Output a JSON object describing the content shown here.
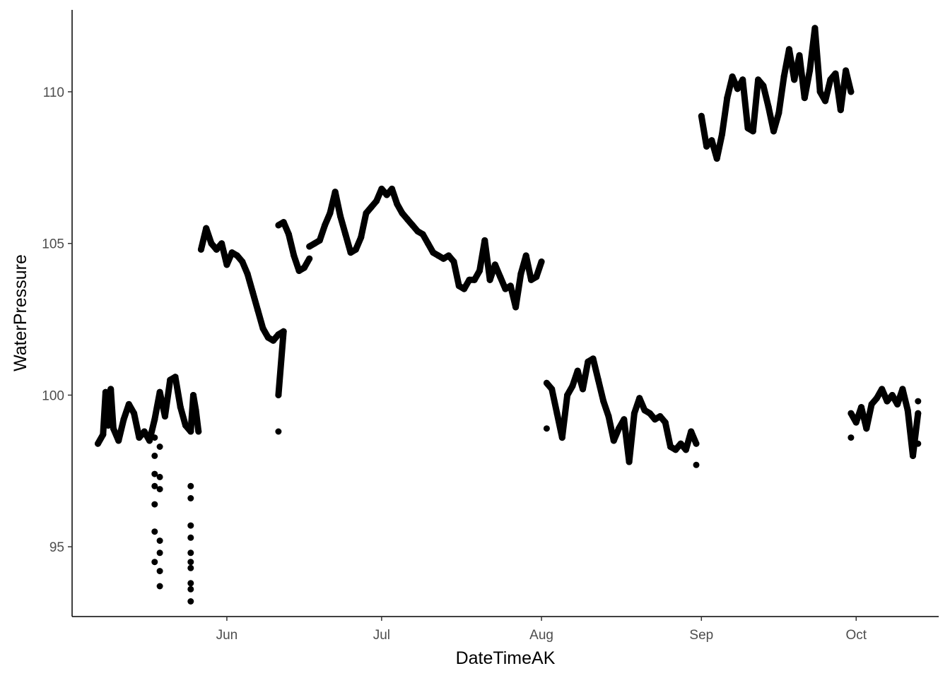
{
  "chart_data": {
    "type": "scatter",
    "xlabel": "DateTimeAK",
    "ylabel": "WaterPressure",
    "x_axis_type": "date",
    "xlim": [
      "2023-05-02",
      "2023-10-17"
    ],
    "ylim": [
      92.7,
      112.7
    ],
    "x_ticks": [
      {
        "date": "2023-06-01",
        "label": "Jun"
      },
      {
        "date": "2023-07-01",
        "label": "Jul"
      },
      {
        "date": "2023-08-01",
        "label": "Aug"
      },
      {
        "date": "2023-09-01",
        "label": "Sep"
      },
      {
        "date": "2023-10-01",
        "label": "Oct"
      }
    ],
    "y_ticks": [
      95,
      100,
      105,
      110
    ],
    "grid": false,
    "legend": "none",
    "point_color": "#000000",
    "series": [
      {
        "values": [
          {
            "x": "2023-05-07",
            "y": 98.4
          },
          {
            "x": "2023-05-08",
            "y": 98.7
          },
          {
            "x": "2023-05-08 12:00",
            "y": 100.1
          },
          {
            "x": "2023-05-09",
            "y": 99.0
          },
          {
            "x": "2023-05-09 12:00",
            "y": 100.2
          },
          {
            "x": "2023-05-10",
            "y": 98.9
          },
          {
            "x": "2023-05-11",
            "y": 98.5
          },
          {
            "x": "2023-05-12",
            "y": 99.2
          },
          {
            "x": "2023-05-13",
            "y": 99.7
          },
          {
            "x": "2023-05-14",
            "y": 99.4
          },
          {
            "x": "2023-05-15",
            "y": 98.6
          },
          {
            "x": "2023-05-16",
            "y": 98.8
          },
          {
            "x": "2023-05-17",
            "y": 98.5
          },
          {
            "x": "2023-05-18",
            "y": 99.2
          },
          {
            "x": "2023-05-19",
            "y": 100.1
          },
          {
            "x": "2023-05-20",
            "y": 99.3
          },
          {
            "x": "2023-05-21",
            "y": 100.5
          },
          {
            "x": "2023-05-22",
            "y": 100.6
          },
          {
            "x": "2023-05-23",
            "y": 99.6
          },
          {
            "x": "2023-05-24",
            "y": 99.0
          },
          {
            "x": "2023-05-25",
            "y": 98.8
          },
          {
            "x": "2023-05-25 12:00",
            "y": 100.0
          },
          {
            "x": "2023-05-26",
            "y": 99.5
          },
          {
            "x": "2023-05-26 12:00",
            "y": 98.8
          },
          {
            "x": "2023-05-18",
            "y": 98.6
          },
          {
            "x": "2023-05-18",
            "y": 98.0
          },
          {
            "x": "2023-05-18",
            "y": 97.4
          },
          {
            "x": "2023-05-18",
            "y": 97.0
          },
          {
            "x": "2023-05-18",
            "y": 96.4
          },
          {
            "x": "2023-05-18",
            "y": 95.5
          },
          {
            "x": "2023-05-18",
            "y": 94.5
          },
          {
            "x": "2023-05-19",
            "y": 98.3
          },
          {
            "x": "2023-05-19",
            "y": 97.3
          },
          {
            "x": "2023-05-19",
            "y": 96.9
          },
          {
            "x": "2023-05-19",
            "y": 95.2
          },
          {
            "x": "2023-05-19",
            "y": 94.8
          },
          {
            "x": "2023-05-19",
            "y": 94.2
          },
          {
            "x": "2023-05-19",
            "y": 93.7
          },
          {
            "x": "2023-05-25",
            "y": 97.0
          },
          {
            "x": "2023-05-25",
            "y": 96.6
          },
          {
            "x": "2023-05-25",
            "y": 95.7
          },
          {
            "x": "2023-05-25",
            "y": 95.3
          },
          {
            "x": "2023-05-25",
            "y": 94.8
          },
          {
            "x": "2023-05-25",
            "y": 94.5
          },
          {
            "x": "2023-05-25",
            "y": 94.3
          },
          {
            "x": "2023-05-25",
            "y": 93.8
          },
          {
            "x": "2023-05-25",
            "y": 93.6
          },
          {
            "x": "2023-05-25",
            "y": 93.2
          },
          {
            "x": "2023-05-27",
            "y": 104.8
          },
          {
            "x": "2023-05-28",
            "y": 105.5
          },
          {
            "x": "2023-05-29",
            "y": 105.0
          },
          {
            "x": "2023-05-30",
            "y": 104.8
          },
          {
            "x": "2023-05-31",
            "y": 105.0
          },
          {
            "x": "2023-06-01",
            "y": 104.3
          },
          {
            "x": "2023-06-02",
            "y": 104.7
          },
          {
            "x": "2023-06-03",
            "y": 104.6
          },
          {
            "x": "2023-06-04",
            "y": 104.4
          },
          {
            "x": "2023-06-05",
            "y": 104.0
          },
          {
            "x": "2023-06-06",
            "y": 103.4
          },
          {
            "x": "2023-06-07",
            "y": 102.8
          },
          {
            "x": "2023-06-08",
            "y": 102.2
          },
          {
            "x": "2023-06-09",
            "y": 101.9
          },
          {
            "x": "2023-06-10",
            "y": 101.8
          },
          {
            "x": "2023-06-11",
            "y": 102.0
          },
          {
            "x": "2023-06-12",
            "y": 102.1
          },
          {
            "x": "2023-06-11",
            "y": 100.0
          },
          {
            "x": "2023-06-11",
            "y": 98.8
          },
          {
            "x": "2023-06-11",
            "y": 105.6
          },
          {
            "x": "2023-06-12",
            "y": 105.7
          },
          {
            "x": "2023-06-13",
            "y": 105.3
          },
          {
            "x": "2023-06-14",
            "y": 104.6
          },
          {
            "x": "2023-06-15",
            "y": 104.1
          },
          {
            "x": "2023-06-16",
            "y": 104.2
          },
          {
            "x": "2023-06-17",
            "y": 104.5
          },
          {
            "x": "2023-06-17",
            "y": 104.9
          },
          {
            "x": "2023-06-18",
            "y": 105.0
          },
          {
            "x": "2023-06-19",
            "y": 105.1
          },
          {
            "x": "2023-06-20",
            "y": 105.6
          },
          {
            "x": "2023-06-21",
            "y": 106.0
          },
          {
            "x": "2023-06-22",
            "y": 106.7
          },
          {
            "x": "2023-06-23",
            "y": 105.9
          },
          {
            "x": "2023-06-24",
            "y": 105.3
          },
          {
            "x": "2023-06-25",
            "y": 104.7
          },
          {
            "x": "2023-06-26",
            "y": 104.8
          },
          {
            "x": "2023-06-27",
            "y": 105.2
          },
          {
            "x": "2023-06-28",
            "y": 106.0
          },
          {
            "x": "2023-06-29",
            "y": 106.2
          },
          {
            "x": "2023-06-30",
            "y": 106.4
          },
          {
            "x": "2023-07-01",
            "y": 106.8
          },
          {
            "x": "2023-07-02",
            "y": 106.6
          },
          {
            "x": "2023-07-03",
            "y": 106.8
          },
          {
            "x": "2023-07-04",
            "y": 106.3
          },
          {
            "x": "2023-07-05",
            "y": 106.0
          },
          {
            "x": "2023-07-06",
            "y": 105.8
          },
          {
            "x": "2023-07-07",
            "y": 105.6
          },
          {
            "x": "2023-07-08",
            "y": 105.4
          },
          {
            "x": "2023-07-09",
            "y": 105.3
          },
          {
            "x": "2023-07-10",
            "y": 105.0
          },
          {
            "x": "2023-07-11",
            "y": 104.7
          },
          {
            "x": "2023-07-12",
            "y": 104.6
          },
          {
            "x": "2023-07-13",
            "y": 104.5
          },
          {
            "x": "2023-07-14",
            "y": 104.6
          },
          {
            "x": "2023-07-15",
            "y": 104.4
          },
          {
            "x": "2023-07-16",
            "y": 103.6
          },
          {
            "x": "2023-07-17",
            "y": 103.5
          },
          {
            "x": "2023-07-18",
            "y": 103.8
          },
          {
            "x": "2023-07-19",
            "y": 103.8
          },
          {
            "x": "2023-07-20",
            "y": 104.1
          },
          {
            "x": "2023-07-21",
            "y": 105.1
          },
          {
            "x": "2023-07-22",
            "y": 103.8
          },
          {
            "x": "2023-07-23",
            "y": 104.3
          },
          {
            "x": "2023-07-24",
            "y": 103.9
          },
          {
            "x": "2023-07-25",
            "y": 103.5
          },
          {
            "x": "2023-07-26",
            "y": 103.6
          },
          {
            "x": "2023-07-27",
            "y": 102.9
          },
          {
            "x": "2023-07-28",
            "y": 104.0
          },
          {
            "x": "2023-07-29",
            "y": 104.6
          },
          {
            "x": "2023-07-30",
            "y": 103.8
          },
          {
            "x": "2023-07-31",
            "y": 103.9
          },
          {
            "x": "2023-08-01",
            "y": 104.4
          },
          {
            "x": "2023-08-02",
            "y": 98.9
          },
          {
            "x": "2023-08-02",
            "y": 100.4
          },
          {
            "x": "2023-08-03",
            "y": 100.2
          },
          {
            "x": "2023-08-04",
            "y": 99.4
          },
          {
            "x": "2023-08-05",
            "y": 98.6
          },
          {
            "x": "2023-08-06",
            "y": 100.0
          },
          {
            "x": "2023-08-07",
            "y": 100.3
          },
          {
            "x": "2023-08-08",
            "y": 100.8
          },
          {
            "x": "2023-08-09",
            "y": 100.2
          },
          {
            "x": "2023-08-10",
            "y": 101.1
          },
          {
            "x": "2023-08-11",
            "y": 101.2
          },
          {
            "x": "2023-08-12",
            "y": 100.5
          },
          {
            "x": "2023-08-13",
            "y": 99.8
          },
          {
            "x": "2023-08-14",
            "y": 99.3
          },
          {
            "x": "2023-08-15",
            "y": 98.5
          },
          {
            "x": "2023-08-16",
            "y": 98.9
          },
          {
            "x": "2023-08-17",
            "y": 99.2
          },
          {
            "x": "2023-08-18",
            "y": 97.8
          },
          {
            "x": "2023-08-19",
            "y": 99.4
          },
          {
            "x": "2023-08-20",
            "y": 99.9
          },
          {
            "x": "2023-08-21",
            "y": 99.5
          },
          {
            "x": "2023-08-22",
            "y": 99.4
          },
          {
            "x": "2023-08-23",
            "y": 99.2
          },
          {
            "x": "2023-08-24",
            "y": 99.3
          },
          {
            "x": "2023-08-25",
            "y": 99.1
          },
          {
            "x": "2023-08-26",
            "y": 98.3
          },
          {
            "x": "2023-08-27",
            "y": 98.2
          },
          {
            "x": "2023-08-28",
            "y": 98.4
          },
          {
            "x": "2023-08-29",
            "y": 98.2
          },
          {
            "x": "2023-08-30",
            "y": 98.8
          },
          {
            "x": "2023-08-31",
            "y": 98.4
          },
          {
            "x": "2023-08-31",
            "y": 97.7
          },
          {
            "x": "2023-09-01",
            "y": 109.2
          },
          {
            "x": "2023-09-02",
            "y": 108.2
          },
          {
            "x": "2023-09-03",
            "y": 108.4
          },
          {
            "x": "2023-09-04",
            "y": 107.8
          },
          {
            "x": "2023-09-05",
            "y": 108.6
          },
          {
            "x": "2023-09-06",
            "y": 109.8
          },
          {
            "x": "2023-09-07",
            "y": 110.5
          },
          {
            "x": "2023-09-08",
            "y": 110.1
          },
          {
            "x": "2023-09-09",
            "y": 110.4
          },
          {
            "x": "2023-09-10",
            "y": 108.8
          },
          {
            "x": "2023-09-11",
            "y": 108.7
          },
          {
            "x": "2023-09-12",
            "y": 110.4
          },
          {
            "x": "2023-09-13",
            "y": 110.2
          },
          {
            "x": "2023-09-14",
            "y": 109.5
          },
          {
            "x": "2023-09-15",
            "y": 108.7
          },
          {
            "x": "2023-09-16",
            "y": 109.3
          },
          {
            "x": "2023-09-17",
            "y": 110.5
          },
          {
            "x": "2023-09-18",
            "y": 111.4
          },
          {
            "x": "2023-09-19",
            "y": 110.4
          },
          {
            "x": "2023-09-20",
            "y": 111.2
          },
          {
            "x": "2023-09-21",
            "y": 109.8
          },
          {
            "x": "2023-09-22",
            "y": 110.7
          },
          {
            "x": "2023-09-23",
            "y": 112.1
          },
          {
            "x": "2023-09-24",
            "y": 110.0
          },
          {
            "x": "2023-09-25",
            "y": 109.7
          },
          {
            "x": "2023-09-26",
            "y": 110.4
          },
          {
            "x": "2023-09-27",
            "y": 110.6
          },
          {
            "x": "2023-09-28",
            "y": 109.4
          },
          {
            "x": "2023-09-29",
            "y": 110.7
          },
          {
            "x": "2023-09-30",
            "y": 110.0
          },
          {
            "x": "2023-09-30",
            "y": 98.6
          },
          {
            "x": "2023-09-30",
            "y": 99.4
          },
          {
            "x": "2023-10-01",
            "y": 99.1
          },
          {
            "x": "2023-10-02",
            "y": 99.6
          },
          {
            "x": "2023-10-03",
            "y": 98.9
          },
          {
            "x": "2023-10-04",
            "y": 99.7
          },
          {
            "x": "2023-10-05",
            "y": 99.9
          },
          {
            "x": "2023-10-06",
            "y": 100.2
          },
          {
            "x": "2023-10-07",
            "y": 99.8
          },
          {
            "x": "2023-10-08",
            "y": 100.0
          },
          {
            "x": "2023-10-09",
            "y": 99.7
          },
          {
            "x": "2023-10-10",
            "y": 100.2
          },
          {
            "x": "2023-10-11",
            "y": 99.5
          },
          {
            "x": "2023-10-12",
            "y": 98.0
          },
          {
            "x": "2023-10-13",
            "y": 99.4
          },
          {
            "x": "2023-10-13",
            "y": 98.4
          },
          {
            "x": "2023-10-13",
            "y": 99.8
          }
        ]
      }
    ]
  }
}
